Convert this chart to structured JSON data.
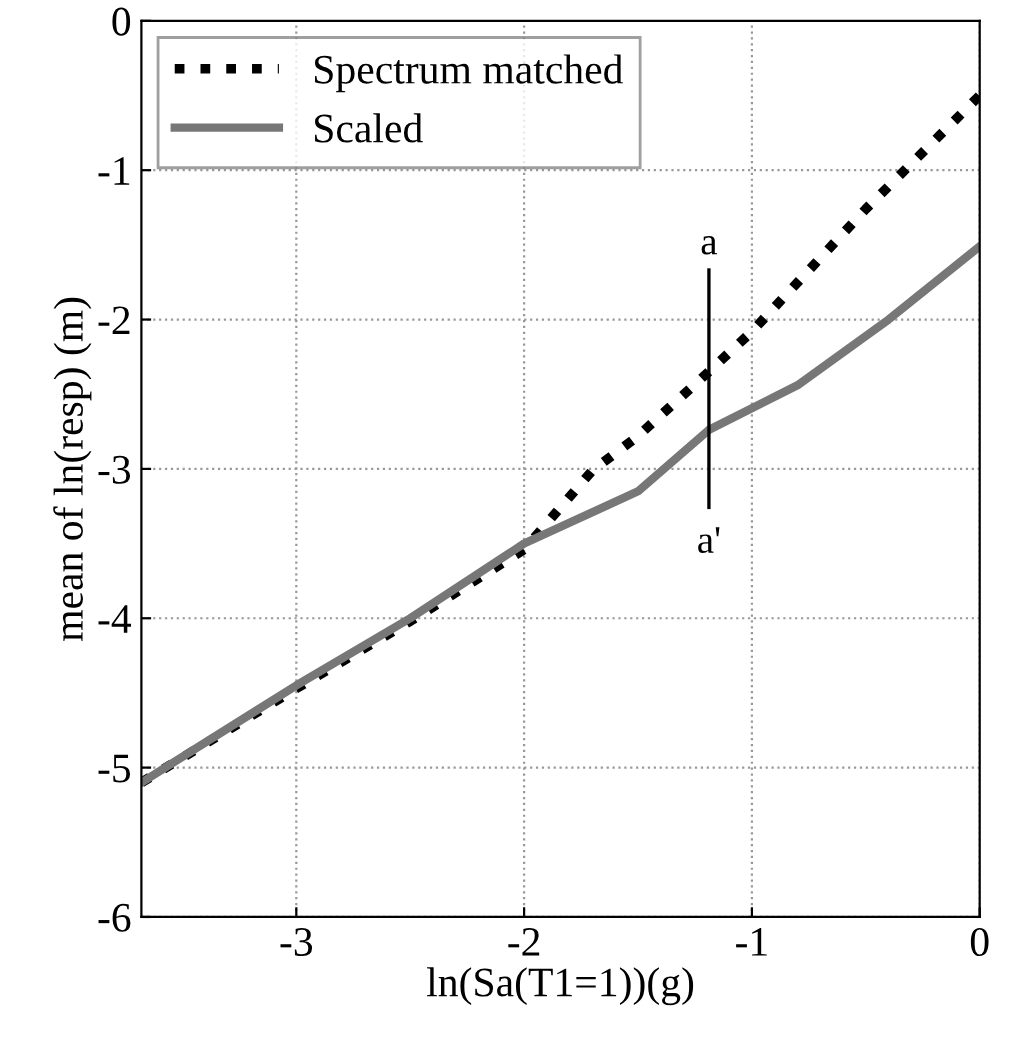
{
  "chart_data": {
    "type": "line",
    "xlabel": "ln(Sa(T1=1))(g)",
    "ylabel": "mean of ln(resp) (m)",
    "xlim": [
      -3.68,
      0
    ],
    "ylim": [
      -6,
      0
    ],
    "xticks": [
      -3,
      -2,
      -1,
      0
    ],
    "yticks": [
      0,
      -1,
      -2,
      -3,
      -4,
      -5,
      -6
    ],
    "grid": true,
    "legend": "top left",
    "series": [
      {
        "name": "Spectrum matched",
        "color": "#000000",
        "line_style": "dotted",
        "x": [
          -3.68,
          -3,
          -2.5,
          -2,
          -1.7,
          -1.5,
          -1.19,
          -1,
          -0.5,
          0
        ],
        "values": [
          -5.1,
          -4.47,
          -4.02,
          -3.54,
          -3.01,
          -2.78,
          -2.35,
          -2.08,
          -1.26,
          -0.5
        ]
      },
      {
        "name": "Scaled",
        "color": "#777777",
        "line_style": "solid",
        "x": [
          -3.68,
          -3,
          -2.5,
          -2,
          -1.5,
          -1.19,
          -0.8,
          -0.4,
          0
        ],
        "values": [
          -5.1,
          -4.45,
          -4.0,
          -3.5,
          -3.15,
          -2.74,
          -2.44,
          -2.0,
          -1.51
        ]
      }
    ],
    "annotations": [
      "a",
      "a'"
    ]
  }
}
